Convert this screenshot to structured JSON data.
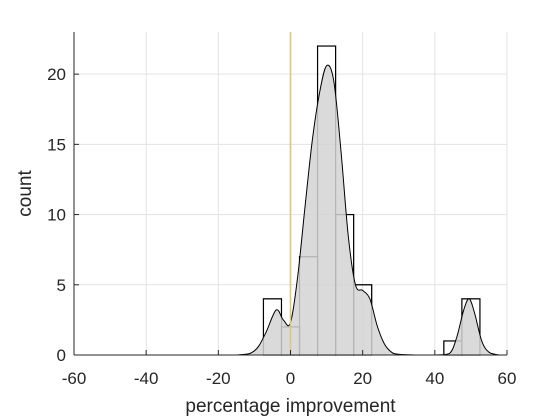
{
  "chart_data": {
    "type": "histogram",
    "xlabel": "percentage improvement",
    "ylabel": "count",
    "xlim": [
      -60,
      60
    ],
    "ylim": [
      0,
      23
    ],
    "xticks": [
      "-60",
      "-40",
      "-20",
      "0",
      "20",
      "40",
      "60"
    ],
    "yticks": [
      "0",
      "5",
      "10",
      "15",
      "20"
    ],
    "grid": true,
    "reference_line_x": 0,
    "bin_width": 5,
    "bins": [
      {
        "start": -7.5,
        "count": 4
      },
      {
        "start": -2.5,
        "count": 2
      },
      {
        "start": 2.5,
        "count": 7
      },
      {
        "start": 7.5,
        "count": 22
      },
      {
        "start": 12.5,
        "count": 10
      },
      {
        "start": 17.5,
        "count": 5
      },
      {
        "start": 42.5,
        "count": 1
      },
      {
        "start": 47.5,
        "count": 4
      }
    ],
    "density_curve": {
      "x": [
        -60,
        -30,
        -15,
        -10,
        -7,
        -4,
        -2,
        0,
        2,
        4,
        6,
        8,
        10,
        12,
        14,
        16,
        18,
        20,
        22,
        24,
        26,
        28,
        30,
        35,
        40,
        44,
        46,
        48,
        49.5,
        51,
        53,
        55,
        58,
        60
      ],
      "y": [
        0,
        0,
        0,
        0.3,
        1.5,
        3.2,
        2.5,
        2.3,
        5.6,
        10.5,
        15.2,
        18.6,
        20.6,
        19.5,
        14.5,
        8.5,
        5.0,
        4.6,
        4.0,
        2.1,
        0.8,
        0.2,
        0.05,
        0,
        0,
        0.1,
        1.2,
        3.2,
        4.0,
        3.0,
        1.0,
        0.2,
        0,
        0
      ]
    },
    "colors": {
      "fill": "#d4d4d4",
      "edge": "#000000",
      "reference_line": "#d9c48a",
      "grid": "#e3e3e3",
      "axis": "#262626"
    }
  }
}
